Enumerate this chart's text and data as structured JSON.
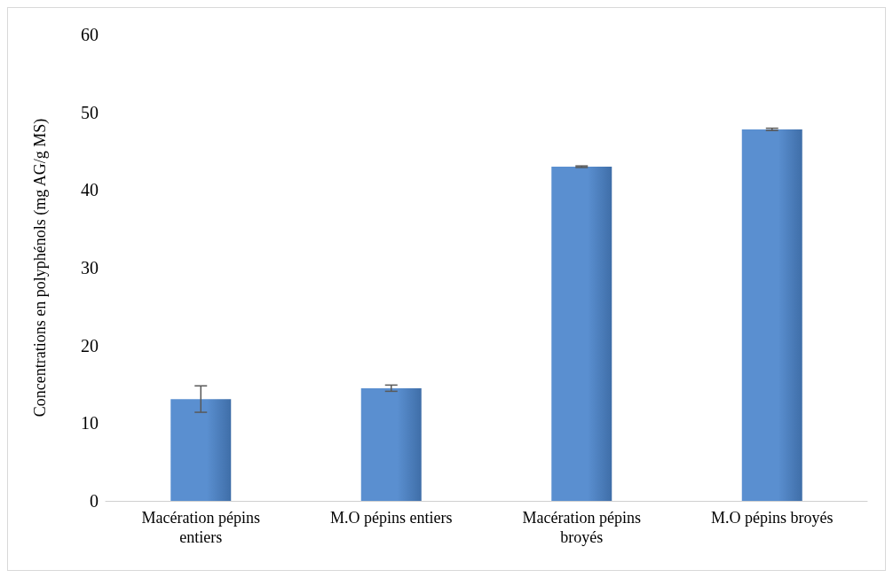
{
  "chart_data": {
    "type": "bar",
    "ylabel": "Concentrations en polyphénols (mg AG/g MS)",
    "categories": [
      "Macération pépins entiers",
      "M.O pépins entiers",
      "Macération pépins broyés",
      "M.O pépins broyés"
    ],
    "values": [
      13.1,
      14.5,
      43.0,
      47.8
    ],
    "errors": [
      1.7,
      0.4,
      0.1,
      0.15
    ],
    "color": "#5a8fd0",
    "ylim": [
      0,
      60
    ],
    "yticks": [
      0,
      10,
      20,
      30,
      40,
      50,
      60
    ],
    "grid": false
  }
}
